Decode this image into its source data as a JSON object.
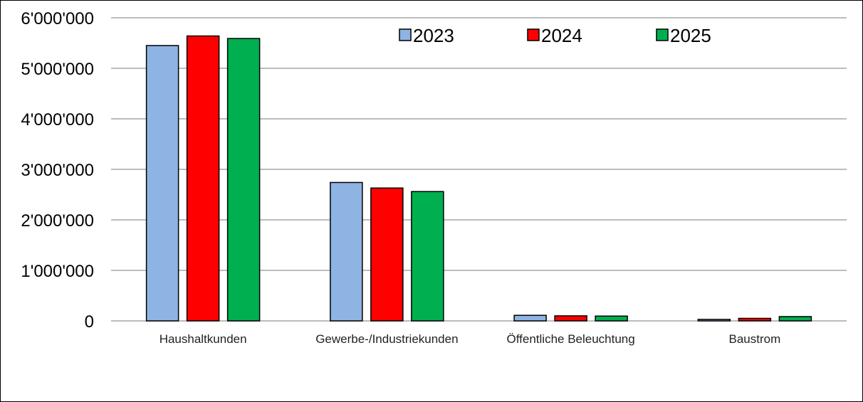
{
  "chart_data": {
    "type": "bar",
    "categories": [
      "Haushaltkunden",
      "Gewerbe-/Industriekunden",
      "Öffentliche Beleuchtung",
      "Baustrom"
    ],
    "series": [
      {
        "name": "2023",
        "color": "#8eb4e3",
        "values": [
          5450000,
          2740000,
          110000,
          30000
        ]
      },
      {
        "name": "2024",
        "color": "#ff0000",
        "values": [
          5640000,
          2630000,
          100000,
          50000
        ]
      },
      {
        "name": "2025",
        "color": "#00b050",
        "values": [
          5590000,
          2560000,
          95000,
          85000
        ]
      }
    ],
    "y_ticks": [
      "0",
      "1'000'000",
      "2'000'000",
      "3'000'000",
      "4'000'000",
      "5'000'000",
      "6'000'000"
    ],
    "ylim": [
      0,
      6000000
    ],
    "grid": true,
    "legend_position": "top",
    "title": "",
    "xlabel": "",
    "ylabel": ""
  }
}
